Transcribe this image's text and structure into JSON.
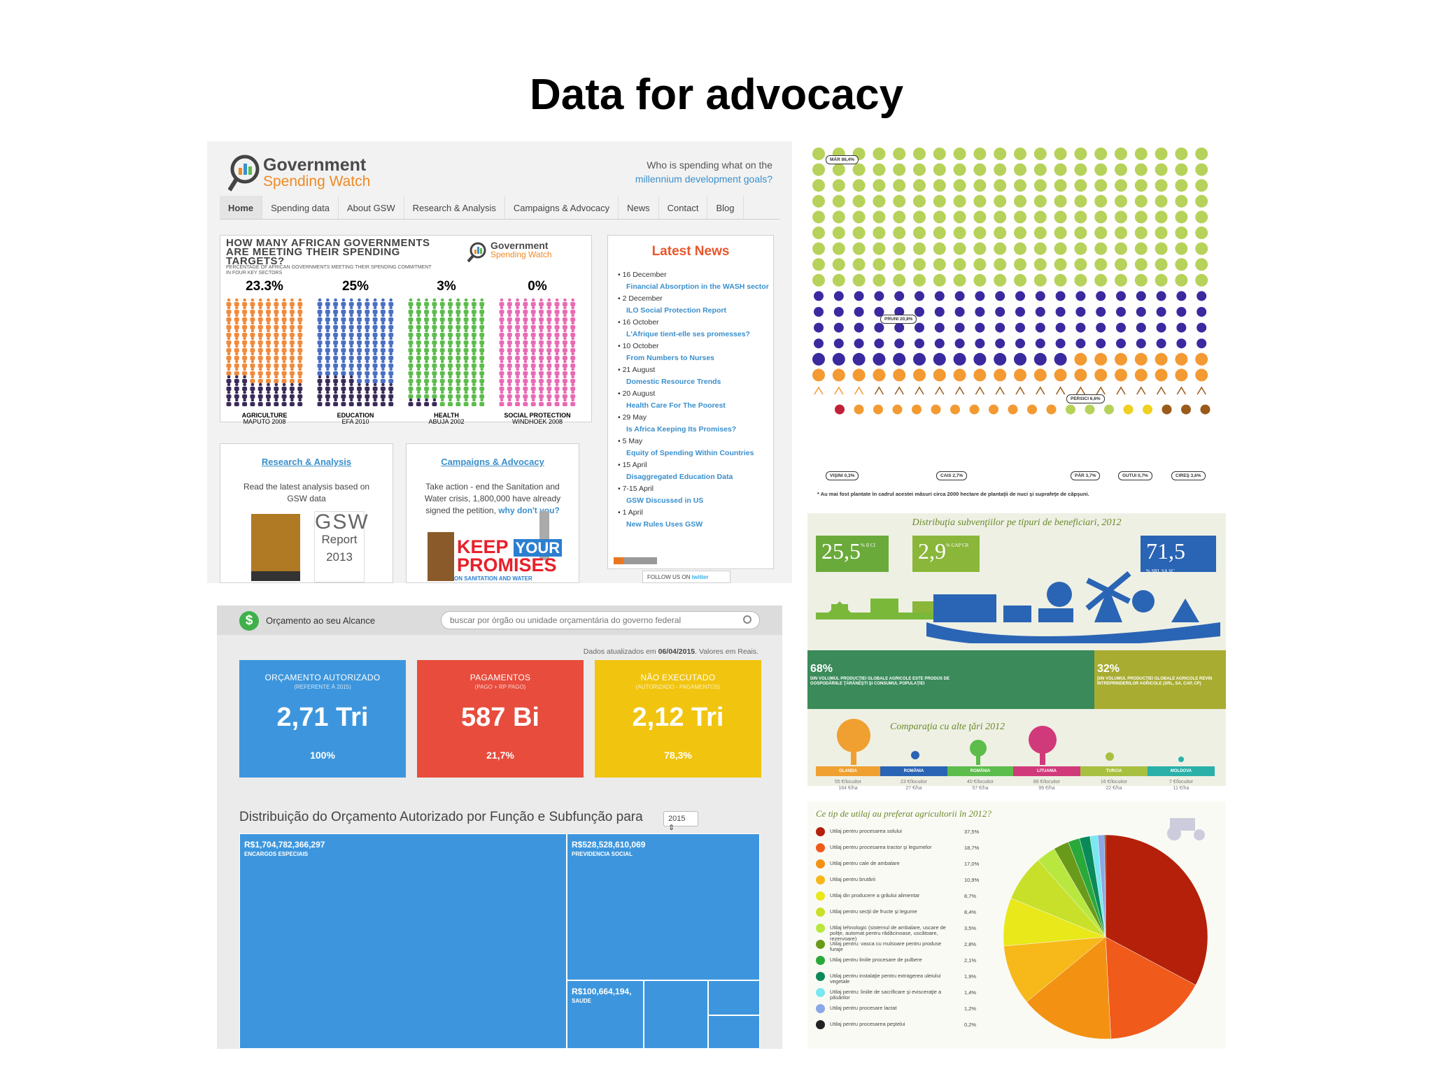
{
  "slide": {
    "title": "Data for advocacy"
  },
  "gsw": {
    "logo_line1": "Government",
    "logo_line2": "Spending Watch",
    "tagline_1": "Who is spending what on the",
    "tagline_2": "millennium development goals?",
    "nav": [
      "Home",
      "Spending data",
      "About GSW",
      "Research & Analysis",
      "Campaigns & Advocacy",
      "News",
      "Contact",
      "Blog"
    ],
    "infographic": {
      "question": "HOW MANY AFRICAN GOVERNMENTS ARE MEETING THEIR SPENDING TARGETS?",
      "subtitle": "PERCENTAGE OF AFRICAN GOVERNMENTS MEETING THEIR SPENDING COMMITMENT IN FOUR KEY SECTORS",
      "logo_line1": "Government",
      "logo_line2": "Spending Watch",
      "columns": [
        {
          "pct": "23.3%",
          "label": "AGRICULTURE",
          "sub": "MAPUTO 2008",
          "color": "#f08a3c",
          "fraction": 0.233
        },
        {
          "pct": "25%",
          "label": "EDUCATION",
          "sub": "EFA 2010",
          "color": "#4a6fc4",
          "fraction": 0.25
        },
        {
          "pct": "3%",
          "label": "HEALTH",
          "sub": "ABUJA 2002",
          "color": "#5cbc4c",
          "fraction": 0.03
        },
        {
          "pct": "0%",
          "label": "SOCIAL PROTECTION",
          "sub": "WINDHOEK 2008",
          "color": "#e86ab4",
          "fraction": 0.0
        }
      ]
    },
    "news": {
      "heading": "Latest News",
      "items": [
        {
          "date": "16 December",
          "title": "Financial Absorption in the WASH sector"
        },
        {
          "date": "2 December",
          "title": "ILO Social Protection Report"
        },
        {
          "date": "16 October",
          "title": "L'Afrique tient-elle ses promesses?"
        },
        {
          "date": "10 October",
          "title": "From Numbers to Nurses"
        },
        {
          "date": "21 August",
          "title": "Domestic Resource Trends"
        },
        {
          "date": "20 August",
          "title": "Health Care For The Poorest"
        },
        {
          "date": "29 May",
          "title": "Is Africa Keeping Its Promises?"
        },
        {
          "date": "5 May",
          "title": "Equity of Spending Within Countries"
        },
        {
          "date": "15 April",
          "title": "Disaggregated Education Data"
        },
        {
          "date": "7-15 April",
          "title": "GSW Discussed in US"
        },
        {
          "date": "1 April",
          "title": "New Rules Uses GSW"
        }
      ],
      "follow": "FOLLOW US ON",
      "twitter": "twitter"
    },
    "research": {
      "heading": "Research & Analysis",
      "text": "Read the latest analysis based on GSW data",
      "report_1": "GSW",
      "report_2": "Report",
      "report_3": "2013"
    },
    "campaigns": {
      "heading": "Campaigns & Advocacy",
      "text": "Take action - end the Sanitation and Water crisis, 1,800,000 have already signed the petition,",
      "link": "why don't you?",
      "keep": "KEEP",
      "your": "YOUR",
      "promises": "PROMISES",
      "sanitation": "ON SANITATION AND WATER"
    }
  },
  "orcamento": {
    "app_name": "Orçamento ao seu Alcance",
    "logo": "$",
    "search_placeholder": "buscar por órgão ou unidade orçamentária do governo federal",
    "updated_prefix": "Dados atualizados em",
    "updated_date": "06/04/2015",
    "updated_suffix": ". Valores em Reais.",
    "kpis": [
      {
        "label": "ORÇAMENTO AUTORIZADO",
        "sub": "(REFERENTE À 2015)",
        "value": "2,71 Tri",
        "pct": "100%",
        "color": "#3d96dd"
      },
      {
        "label": "PAGAMENTOS",
        "sub": "(PAGO + RP PAGO)",
        "value": "587 Bi",
        "pct": "21,7%",
        "color": "#e84c3d"
      },
      {
        "label": "NÃO EXECUTADO",
        "sub": "(AUTORIZADO - PAGAMENTOS)",
        "value": "2,12 Tri",
        "pct": "78,3%",
        "color": "#f1c40f"
      }
    ],
    "distribution_title": "Distribuição do Orçamento Autorizado por Função e Subfunção para",
    "year": "2015",
    "treemap": [
      {
        "value": "R$1,704,782,366,297",
        "name": "ENCARGOS ESPECIAIS"
      },
      {
        "value": "R$528,528,610,069",
        "name": "PREVIDENCIA SOCIAL"
      },
      {
        "value": "R$100,664,194,",
        "name": "SAUDE"
      }
    ]
  },
  "romania": {
    "fruit_labels": [
      "MĂR 86,4%",
      "PRUNI 20,8%",
      "PERSICI 6,6%",
      "VIŞINI 0,3%",
      "CAIS 2,7%",
      "PĂR 3,7%",
      "GUTUI 0,7%",
      "CIREŞ 3,6%"
    ],
    "fruit_note": "* Au mai fost plantate în cadrul acestei măsuri circa 2000 hectare de plantaţii de nuci şi suprafeţe de căpşuni.",
    "subsidy_title": "Distribuţia subvenţiilor pe tipuri de beneficiari, 2012",
    "subsidies": [
      {
        "value": "25,5",
        "unit": "% II CI",
        "color": "#6aaa3a"
      },
      {
        "value": "2,9",
        "unit": "% GAP CR",
        "color": "#8ab63a"
      },
      {
        "value": "71,5",
        "unit": "% SRL SA SC",
        "color": "#2a64b4"
      }
    ],
    "band_left": {
      "pct": "68%",
      "text": "DIN VOLUMUL PRODUCŢIEI GLOBALE AGRICOLE ESTE PRODUS DE GOSPODĂRIILE ŢĂRĂNEŞTI ŞI CONSUMUL POPULAŢIEI"
    },
    "band_right": {
      "pct": "32%",
      "text": "DIN VOLUMUL PRODUCŢIEI GLOBALE AGRICOLE REVIN ÎNTREPRINDERILOR AGRICOLE (SRL, SA, CAP, CP)"
    },
    "comparison_title": "Comparaţia cu alte ţări 2012",
    "countries": [
      {
        "name": "OLANDA",
        "val1": "55 €/locuitor",
        "val2": "164 €/ha",
        "color": "#f0a030"
      },
      {
        "name": "ROMÂNIA",
        "val1": "23 €/locuitor",
        "val2": "27 €/ha",
        "color": "#2a64b4"
      },
      {
        "name": "ROMÂNIA",
        "val1": "40 €/locuitor",
        "val2": "57 €/ha",
        "color": "#5cbc4c"
      },
      {
        "name": "LITUANIA",
        "val1": "86 €/locuitor",
        "val2": "99 €/ha",
        "color": "#d03a7a"
      },
      {
        "name": "TURCIA",
        "val1": "16 €/locuitor",
        "val2": "22 €/ha",
        "color": "#a8c040"
      },
      {
        "name": "MOLDOVA",
        "val1": "7 €/locuitor",
        "val2": "11 €/ha",
        "color": "#2ab0a8"
      }
    ],
    "pie_title": "Ce tip de utilaj au preferat agricultorii în 2012?"
  },
  "chart_data": {
    "type": "pie",
    "title": "Ce tip de utilaj au preferat agricultorii în 2012?",
    "categories": [
      "Utilaj pentru procesarea solului",
      "Utilaj pentru procesarea tractor şi legumelor",
      "Utilaj pentru cale de ambalare",
      "Utilaj pentru brutării",
      "Utilaj din producere a grâului alimentar",
      "Utilaj pentru secţii de fructe şi legume",
      "Utilaj tehnologic (sistemul de ambalare, uscare de poliţe, automat pentru rădăcinoase, uscătoare, rezervoare)",
      "Utilaj pentru: vasca cu mulsoare pentru produse furaje",
      "Utilaj pentru liniile procesare de pulbere",
      "Utilaj pentru instalaţie pentru extragerea uleiului vegetale",
      "Utilaj pentru: liniile de sacrificare şi evisceraţie a păsărilor",
      "Utilaj pentru procesare lactat",
      "Utilaj pentru procesarea peştelui"
    ],
    "values": [
      37.5,
      18.7,
      17.0,
      10.9,
      8.7,
      8.4,
      3.5,
      2.8,
      2.1,
      1.9,
      1.4,
      1.2,
      0.2
    ],
    "colors": [
      "#b4200a",
      "#f05a1a",
      "#f39212",
      "#f7b81a",
      "#e8e81a",
      "#c8e02a",
      "#b8e840",
      "#6a9a1a",
      "#2aa83a",
      "#0a8a5a",
      "#7ae8f0",
      "#8aa8e8",
      "#222222"
    ],
    "labels_shown": [
      "37,5%",
      "18,7%",
      "17,0%",
      "10,9%",
      "8,7%",
      "8,4%",
      "3,5%",
      "2,8%",
      "2,1%",
      "1,9%",
      "1,4%",
      "1,2%",
      "0,2%"
    ],
    "legend": "left"
  }
}
